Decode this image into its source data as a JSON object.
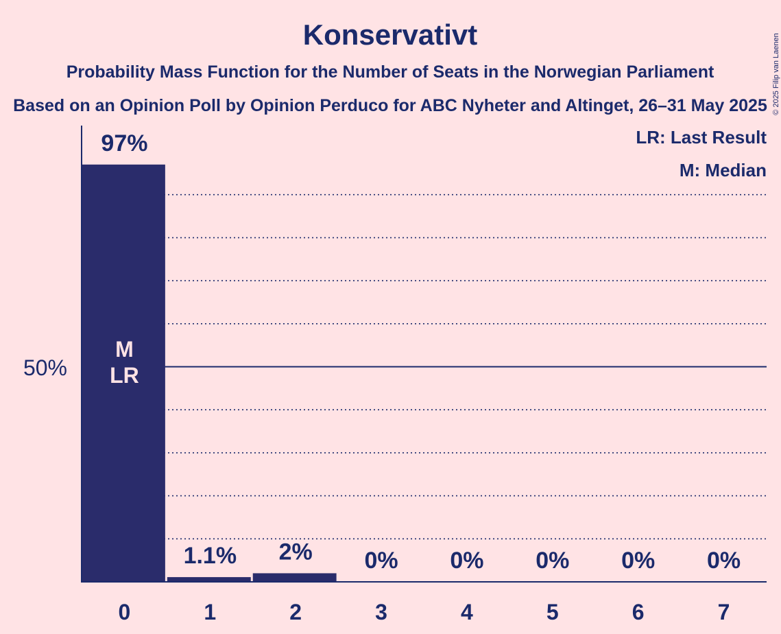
{
  "chart_data": {
    "type": "bar",
    "title": "Konservativt",
    "subtitle1": "Probability Mass Function for the Number of Seats in the Norwegian Parliament",
    "subtitle2": "Based on an Opinion Poll by Opinion Perduco for ABC Nyheter and Altinget, 26–31 May 2025",
    "copyright": "© 2025 Filip van Laenen",
    "categories": [
      "0",
      "1",
      "2",
      "3",
      "4",
      "5",
      "6",
      "7"
    ],
    "values": [
      97,
      1.1,
      2,
      0,
      0,
      0,
      0,
      0
    ],
    "value_labels": [
      "97%",
      "1.1%",
      "2%",
      "0%",
      "0%",
      "0%",
      "0%",
      "0%"
    ],
    "ylim": [
      0,
      100
    ],
    "y_tick_label": "50%",
    "y_tick_value": 50,
    "grid": "dotted every 10%",
    "median_label": "M",
    "last_result_label": "LR",
    "legend": [
      "LR: Last Result",
      "M: Median"
    ],
    "legend_position": "top-right",
    "bar_color": "#2a2c6b",
    "background": "#ffe3e5"
  }
}
